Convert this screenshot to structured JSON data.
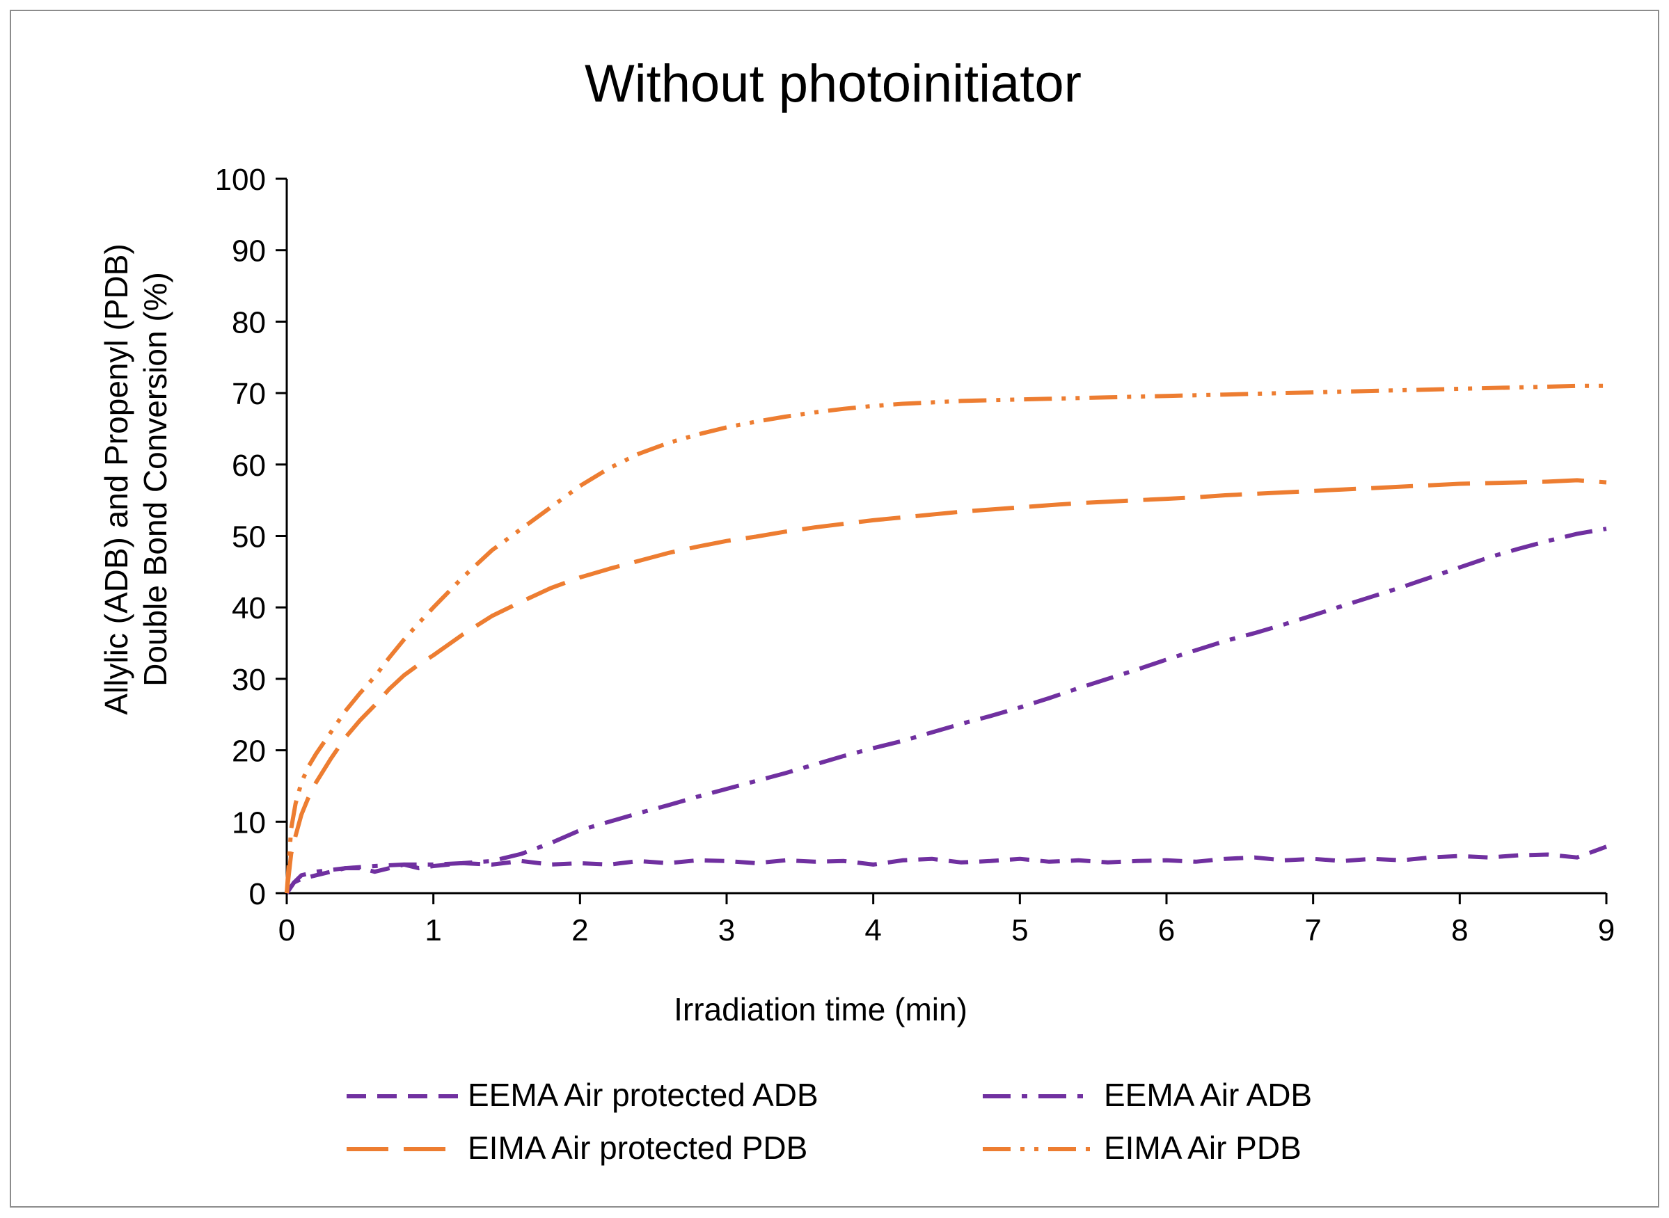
{
  "chart_data": {
    "type": "line",
    "title": "Without photoinitiator",
    "xlabel": "Irradiation time (min)",
    "ylabel_lines": [
      "Allylic (ADB) and Propenyl (PDB)",
      "Double Bond Conversion (%)"
    ],
    "xlim": [
      0,
      9
    ],
    "ylim": [
      0,
      100
    ],
    "x_ticks": [
      0,
      1,
      2,
      3,
      4,
      5,
      6,
      7,
      8,
      9
    ],
    "y_ticks": [
      0,
      10,
      20,
      30,
      40,
      50,
      60,
      70,
      80,
      90,
      100
    ],
    "grid": false,
    "legend_position": "bottom",
    "series": [
      {
        "name": "EEMA  Air protected ADB",
        "color": "#7030A0",
        "dash": "dash",
        "x": [
          0,
          0.05,
          0.1,
          0.2,
          0.3,
          0.4,
          0.5,
          0.6,
          0.7,
          0.8,
          0.9,
          1.0,
          1.2,
          1.4,
          1.6,
          1.8,
          2.0,
          2.2,
          2.4,
          2.6,
          2.8,
          3.0,
          3.2,
          3.4,
          3.6,
          3.8,
          4.0,
          4.2,
          4.4,
          4.6,
          4.8,
          5.0,
          5.2,
          5.4,
          5.6,
          5.8,
          6.0,
          6.2,
          6.4,
          6.6,
          6.8,
          7.0,
          7.2,
          7.4,
          7.6,
          7.8,
          8.0,
          8.2,
          8.4,
          8.6,
          8.8,
          9.0
        ],
        "y": [
          0,
          1.5,
          2.0,
          2.5,
          3.0,
          3.5,
          3.5,
          3.0,
          3.5,
          4.0,
          3.5,
          3.8,
          4.2,
          4.0,
          4.5,
          4.0,
          4.2,
          4.0,
          4.5,
          4.2,
          4.6,
          4.5,
          4.2,
          4.6,
          4.4,
          4.5,
          4.0,
          4.6,
          4.8,
          4.3,
          4.5,
          4.8,
          4.4,
          4.6,
          4.3,
          4.5,
          4.6,
          4.4,
          4.8,
          5.0,
          4.6,
          4.8,
          4.5,
          4.8,
          4.6,
          5.0,
          5.2,
          5.0,
          5.3,
          5.4,
          5.0,
          6.5
        ]
      },
      {
        "name": "EEMA Air ADB",
        "color": "#7030A0",
        "dash": "dashdot",
        "x": [
          0,
          0.05,
          0.1,
          0.2,
          0.4,
          0.6,
          0.8,
          1.0,
          1.2,
          1.4,
          1.6,
          1.8,
          2.0,
          2.2,
          2.4,
          2.6,
          2.8,
          3.0,
          3.2,
          3.4,
          3.6,
          3.8,
          4.0,
          4.2,
          4.4,
          4.6,
          4.8,
          5.0,
          5.2,
          5.4,
          5.6,
          5.8,
          6.0,
          6.2,
          6.4,
          6.6,
          6.8,
          7.0,
          7.2,
          7.4,
          7.6,
          7.8,
          8.0,
          8.2,
          8.4,
          8.6,
          8.8,
          9.0
        ],
        "y": [
          0,
          1.5,
          2.5,
          3.0,
          3.5,
          3.8,
          4.0,
          4.0,
          4.2,
          4.5,
          5.5,
          7.0,
          8.8,
          10.0,
          11.2,
          12.3,
          13.5,
          14.6,
          15.7,
          16.8,
          18.0,
          19.2,
          20.3,
          21.3,
          22.5,
          23.7,
          24.8,
          26.0,
          27.3,
          28.7,
          30.0,
          31.3,
          32.7,
          34.0,
          35.3,
          36.4,
          37.6,
          38.9,
          40.2,
          41.5,
          42.8,
          44.2,
          45.6,
          47.0,
          48.2,
          49.3,
          50.3,
          51.0
        ]
      },
      {
        "name": "EIMA  Air protected PDB",
        "color": "#ED7D31",
        "dash": "longdash",
        "x": [
          0,
          0.03,
          0.06,
          0.1,
          0.15,
          0.2,
          0.3,
          0.4,
          0.5,
          0.6,
          0.7,
          0.8,
          0.9,
          1.0,
          1.2,
          1.4,
          1.6,
          1.8,
          2.0,
          2.2,
          2.4,
          2.6,
          2.8,
          3.0,
          3.2,
          3.4,
          3.6,
          3.8,
          4.0,
          4.2,
          4.4,
          4.6,
          4.8,
          5.0,
          5.2,
          5.4,
          5.6,
          5.8,
          6.0,
          6.2,
          6.4,
          6.6,
          6.8,
          7.0,
          7.2,
          7.4,
          7.6,
          7.8,
          8.0,
          8.2,
          8.4,
          8.6,
          8.8,
          9.0
        ],
        "y": [
          0,
          5.5,
          8.0,
          11.0,
          13.5,
          15.5,
          18.8,
          21.8,
          24.2,
          26.3,
          28.6,
          30.5,
          32.0,
          33.3,
          36.2,
          38.8,
          40.8,
          42.7,
          44.2,
          45.4,
          46.5,
          47.6,
          48.5,
          49.3,
          49.9,
          50.6,
          51.2,
          51.7,
          52.2,
          52.6,
          53.0,
          53.4,
          53.7,
          54.0,
          54.3,
          54.6,
          54.8,
          55.0,
          55.2,
          55.4,
          55.7,
          55.9,
          56.1,
          56.3,
          56.5,
          56.7,
          56.9,
          57.1,
          57.3,
          57.4,
          57.5,
          57.6,
          57.8,
          57.5
        ]
      },
      {
        "name": "EIMA Air PDB",
        "color": "#ED7D31",
        "dash": "dashdotdot",
        "x": [
          0,
          0.03,
          0.06,
          0.1,
          0.15,
          0.2,
          0.3,
          0.4,
          0.5,
          0.6,
          0.7,
          0.8,
          0.9,
          1.0,
          1.2,
          1.4,
          1.6,
          1.8,
          2.0,
          2.2,
          2.4,
          2.6,
          2.8,
          3.0,
          3.2,
          3.4,
          3.6,
          3.8,
          4.0,
          4.2,
          4.4,
          4.6,
          4.8,
          5.0,
          5.2,
          5.4,
          5.6,
          5.8,
          6.0,
          6.2,
          6.4,
          6.6,
          6.8,
          7.0,
          7.2,
          7.4,
          7.6,
          7.8,
          8.0,
          8.2,
          8.4,
          8.6,
          8.8,
          9.0
        ],
        "y": [
          0,
          9.0,
          12.5,
          15.5,
          17.8,
          19.5,
          22.5,
          25.5,
          28.0,
          30.3,
          33.0,
          35.5,
          37.8,
          40.0,
          44.2,
          48.0,
          51.0,
          54.0,
          57.0,
          59.5,
          61.5,
          63.0,
          64.2,
          65.2,
          66.0,
          66.7,
          67.3,
          67.8,
          68.2,
          68.5,
          68.7,
          68.9,
          69.0,
          69.1,
          69.2,
          69.3,
          69.4,
          69.5,
          69.6,
          69.7,
          69.8,
          69.9,
          70.0,
          70.1,
          70.2,
          70.3,
          70.4,
          70.5,
          70.6,
          70.7,
          70.8,
          70.9,
          71.0,
          71.0
        ]
      }
    ]
  }
}
